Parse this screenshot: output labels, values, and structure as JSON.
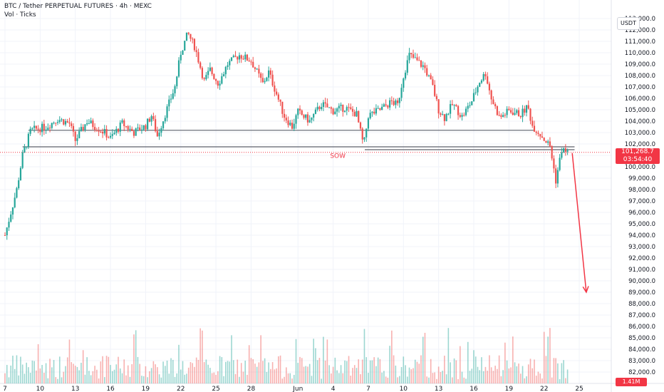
{
  "legend": {
    "symbol": "BTC / Tether PERPETUAL FUTURES · 4h · MEXC",
    "volume_label": "Vol · Ticks"
  },
  "currency": "USDT",
  "last_price": {
    "price": "101,268.7",
    "countdown": "03:54:40"
  },
  "volume_value": "1.41M",
  "colors": {
    "up": "#26a69a",
    "down": "#ef5350",
    "badge": "#f23645"
  },
  "chart_data": {
    "type": "candlestick",
    "timeframe": "4h",
    "ylim": [
      81500,
      113500
    ],
    "y_ticks": [
      113000,
      112000,
      111000,
      110000,
      109000,
      108000,
      107000,
      106000,
      105000,
      104000,
      103000,
      102000,
      101000,
      100000,
      99000,
      98000,
      97000,
      96000,
      95000,
      94000,
      93000,
      92000,
      91000,
      90000,
      89000,
      88000,
      87000,
      86000,
      85000,
      84000,
      83000,
      82000
    ],
    "y_tick_labels": [
      "113,000.0",
      "112,000.0",
      "111,000.0",
      "110,000.0",
      "109,000.0",
      "108,000.0",
      "107,000.0",
      "106,000.0",
      "105,000.0",
      "104,000.0",
      "103,000.0",
      "102,000.0",
      "101,000.0",
      "100,000.0",
      "99,000.0",
      "98,000.0",
      "97,000.0",
      "96,000.0",
      "95,000.0",
      "94,000.0",
      "93,000.0",
      "92,000.0",
      "91,000.0",
      "90,000.0",
      "89,000.0",
      "88,000.0",
      "87,000.0",
      "86,000.0",
      "85,000.0",
      "84,000.0",
      "83,000.0",
      "82,000.0"
    ],
    "x_tick_labels": [
      {
        "day": 7,
        "label": "7"
      },
      {
        "day": 10,
        "label": "10"
      },
      {
        "day": 13,
        "label": "13"
      },
      {
        "day": 16,
        "label": "16"
      },
      {
        "day": 19,
        "label": "19"
      },
      {
        "day": 22,
        "label": "22"
      },
      {
        "day": 25,
        "label": "25"
      },
      {
        "day": 28,
        "label": "28"
      },
      {
        "day": 32,
        "label": "Jun"
      },
      {
        "day": 35,
        "label": "4"
      },
      {
        "day": 38,
        "label": "7"
      },
      {
        "day": 41,
        "label": "10"
      },
      {
        "day": 44,
        "label": "13"
      },
      {
        "day": 47,
        "label": "16"
      },
      {
        "day": 50,
        "label": "19"
      },
      {
        "day": 53,
        "label": "22"
      },
      {
        "day": 56,
        "label": "25"
      }
    ],
    "keypoints": [
      {
        "day": 7.0,
        "price": 94000
      },
      {
        "day": 8.0,
        "price": 98000
      },
      {
        "day": 8.5,
        "price": 101000
      },
      {
        "day": 9.2,
        "price": 103200
      },
      {
        "day": 10.5,
        "price": 103500
      },
      {
        "day": 11.5,
        "price": 104200
      },
      {
        "day": 12.5,
        "price": 103800
      },
      {
        "day": 13.0,
        "price": 102300
      },
      {
        "day": 14.0,
        "price": 104000
      },
      {
        "day": 15.5,
        "price": 103000
      },
      {
        "day": 16.0,
        "price": 102500
      },
      {
        "day": 17.0,
        "price": 103800
      },
      {
        "day": 18.0,
        "price": 103000
      },
      {
        "day": 19.0,
        "price": 103600
      },
      {
        "day": 19.5,
        "price": 104500
      },
      {
        "day": 20.0,
        "price": 102700
      },
      {
        "day": 20.8,
        "price": 105000
      },
      {
        "day": 21.5,
        "price": 107000
      },
      {
        "day": 22.0,
        "price": 110000
      },
      {
        "day": 22.6,
        "price": 111700
      },
      {
        "day": 23.2,
        "price": 110500
      },
      {
        "day": 24.0,
        "price": 107500
      },
      {
        "day": 24.5,
        "price": 108500
      },
      {
        "day": 25.2,
        "price": 107300
      },
      {
        "day": 26.0,
        "price": 109000
      },
      {
        "day": 27.0,
        "price": 109800
      },
      {
        "day": 28.0,
        "price": 109300
      },
      {
        "day": 29.0,
        "price": 107300
      },
      {
        "day": 29.5,
        "price": 108300
      },
      {
        "day": 30.2,
        "price": 106300
      },
      {
        "day": 30.8,
        "price": 104500
      },
      {
        "day": 31.5,
        "price": 103500
      },
      {
        "day": 32.0,
        "price": 104800
      },
      {
        "day": 33.0,
        "price": 104000
      },
      {
        "day": 34.0,
        "price": 105500
      },
      {
        "day": 35.0,
        "price": 104900
      },
      {
        "day": 36.0,
        "price": 105200
      },
      {
        "day": 37.0,
        "price": 104600
      },
      {
        "day": 37.6,
        "price": 101800
      },
      {
        "day": 38.0,
        "price": 104500
      },
      {
        "day": 39.0,
        "price": 105000
      },
      {
        "day": 40.0,
        "price": 105700
      },
      {
        "day": 40.5,
        "price": 105400
      },
      {
        "day": 41.0,
        "price": 108000
      },
      {
        "day": 41.5,
        "price": 109800
      },
      {
        "day": 42.0,
        "price": 109400
      },
      {
        "day": 42.8,
        "price": 108700
      },
      {
        "day": 43.5,
        "price": 107000
      },
      {
        "day": 44.0,
        "price": 105000
      },
      {
        "day": 44.5,
        "price": 104300
      },
      {
        "day": 45.2,
        "price": 105500
      },
      {
        "day": 46.0,
        "price": 104400
      },
      {
        "day": 46.8,
        "price": 105700
      },
      {
        "day": 47.5,
        "price": 107500
      },
      {
        "day": 48.0,
        "price": 108200
      },
      {
        "day": 48.5,
        "price": 106000
      },
      {
        "day": 49.2,
        "price": 104300
      },
      {
        "day": 50.0,
        "price": 104900
      },
      {
        "day": 51.0,
        "price": 104600
      },
      {
        "day": 51.6,
        "price": 105300
      },
      {
        "day": 52.0,
        "price": 103600
      },
      {
        "day": 52.8,
        "price": 102700
      },
      {
        "day": 53.5,
        "price": 101800
      },
      {
        "day": 54.0,
        "price": 98800
      },
      {
        "day": 54.5,
        "price": 101500
      },
      {
        "day": 55.0,
        "price": 101270
      }
    ],
    "levels": [
      {
        "price": 103200,
        "day_start": 9.0,
        "day_end": 52.2
      },
      {
        "price": 101750,
        "day_start": 8.5,
        "day_end": 55.6
      },
      {
        "price": 101500,
        "day_start": 37.7,
        "day_end": 55.6
      }
    ],
    "annotations": [
      {
        "text": "SOW",
        "day": 35.4,
        "price": 101020
      },
      {
        "type": "arrow",
        "from": {
          "day": 55.4,
          "price": 101200
        },
        "to": {
          "day": 56.6,
          "price": 89000
        }
      }
    ],
    "current_price": 101268.7
  }
}
